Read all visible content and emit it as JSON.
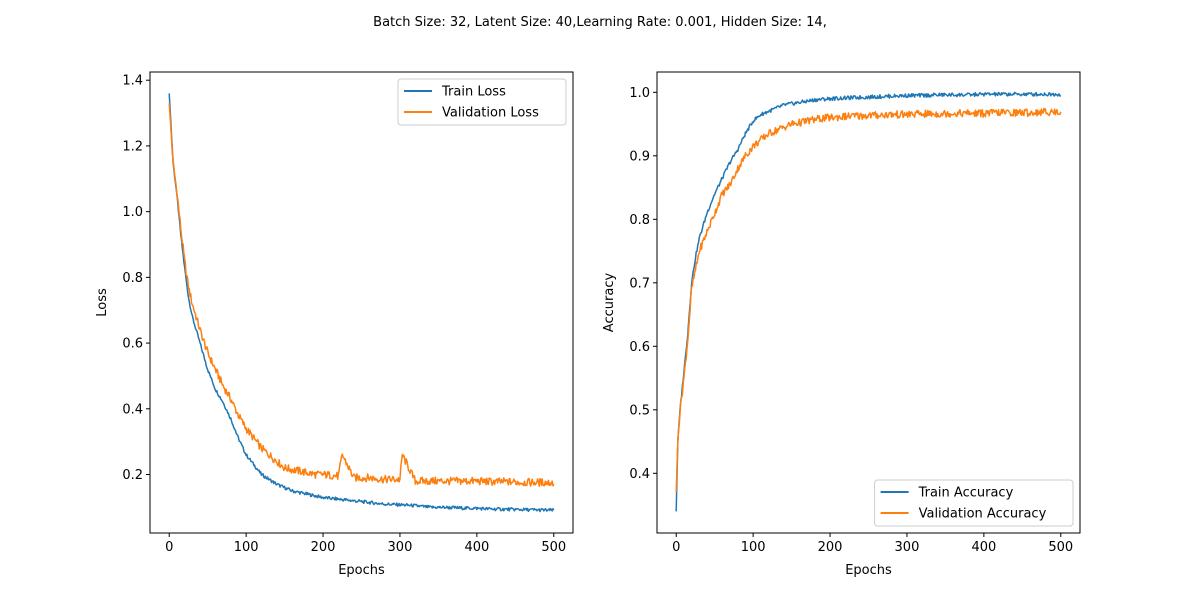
{
  "suptitle": "Batch Size: 32, Latent Size: 40,Learning Rate: 0.001, Hidden Size: 14,",
  "colors": {
    "blue": "#1f77b4",
    "orange": "#ff7f0e"
  },
  "chart_data": [
    {
      "type": "line",
      "title": "",
      "xlabel": "Epochs",
      "ylabel": "Loss",
      "xlim": [
        -25,
        525
      ],
      "ylim": [
        0.022,
        1.425
      ],
      "xticks": [
        0,
        100,
        200,
        300,
        400,
        500
      ],
      "yticks": [
        0.2,
        0.4,
        0.6,
        0.8,
        1.0,
        1.2,
        1.4
      ],
      "ytick_labels": [
        "0.2",
        "0.4",
        "0.6",
        "0.8",
        "1.0",
        "1.2",
        "1.4"
      ],
      "grid": false,
      "legend_position": "upper right",
      "series": [
        {
          "name": "Train Loss",
          "color": "#1f77b4",
          "x": [
            0,
            5,
            10,
            15,
            20,
            25,
            30,
            40,
            50,
            60,
            70,
            80,
            90,
            100,
            110,
            120,
            130,
            140,
            150,
            160,
            170,
            180,
            190,
            200,
            220,
            240,
            260,
            280,
            300,
            320,
            340,
            360,
            380,
            400,
            420,
            440,
            460,
            480,
            500
          ],
          "values": [
            1.36,
            1.15,
            1.05,
            0.93,
            0.83,
            0.74,
            0.68,
            0.6,
            0.52,
            0.46,
            0.42,
            0.37,
            0.31,
            0.26,
            0.23,
            0.2,
            0.185,
            0.17,
            0.16,
            0.15,
            0.145,
            0.14,
            0.135,
            0.13,
            0.125,
            0.12,
            0.115,
            0.11,
            0.108,
            0.105,
            0.1,
            0.1,
            0.098,
            0.097,
            0.095,
            0.094,
            0.093,
            0.092,
            0.091
          ]
        },
        {
          "name": "Validation Loss",
          "color": "#ff7f0e",
          "x": [
            0,
            5,
            10,
            15,
            20,
            25,
            30,
            40,
            50,
            60,
            70,
            80,
            90,
            100,
            110,
            120,
            130,
            140,
            150,
            160,
            170,
            180,
            190,
            200,
            220,
            225,
            240,
            260,
            280,
            300,
            303,
            320,
            340,
            360,
            380,
            400,
            420,
            440,
            460,
            480,
            500
          ],
          "values": [
            1.33,
            1.15,
            1.06,
            0.95,
            0.85,
            0.77,
            0.72,
            0.64,
            0.57,
            0.52,
            0.47,
            0.43,
            0.38,
            0.34,
            0.31,
            0.28,
            0.26,
            0.24,
            0.22,
            0.215,
            0.21,
            0.205,
            0.2,
            0.2,
            0.195,
            0.26,
            0.19,
            0.19,
            0.185,
            0.185,
            0.26,
            0.18,
            0.18,
            0.18,
            0.18,
            0.18,
            0.178,
            0.178,
            0.176,
            0.176,
            0.175
          ]
        }
      ]
    },
    {
      "type": "line",
      "title": "",
      "xlabel": "Epochs",
      "ylabel": "Accuracy",
      "xlim": [
        -25,
        525
      ],
      "ylim": [
        0.306,
        1.032
      ],
      "xticks": [
        0,
        100,
        200,
        300,
        400,
        500
      ],
      "yticks": [
        0.4,
        0.5,
        0.6,
        0.7,
        0.8,
        0.9,
        1.0
      ],
      "ytick_labels": [
        "0.4",
        "0.5",
        "0.6",
        "0.7",
        "0.8",
        "0.9",
        "1.0"
      ],
      "grid": false,
      "legend_position": "lower right",
      "series": [
        {
          "name": "Train Accuracy",
          "color": "#1f77b4",
          "x": [
            0,
            2,
            5,
            10,
            15,
            20,
            25,
            30,
            40,
            50,
            60,
            70,
            80,
            90,
            100,
            110,
            120,
            130,
            140,
            150,
            160,
            170,
            180,
            190,
            200,
            220,
            240,
            260,
            280,
            300,
            320,
            340,
            360,
            380,
            400,
            420,
            440,
            460,
            480,
            500
          ],
          "values": [
            0.34,
            0.45,
            0.5,
            0.56,
            0.62,
            0.7,
            0.74,
            0.77,
            0.81,
            0.84,
            0.865,
            0.89,
            0.91,
            0.935,
            0.955,
            0.965,
            0.97,
            0.975,
            0.98,
            0.982,
            0.984,
            0.986,
            0.988,
            0.989,
            0.99,
            0.991,
            0.992,
            0.993,
            0.994,
            0.995,
            0.995,
            0.996,
            0.996,
            0.996,
            0.997,
            0.997,
            0.997,
            0.997,
            0.997,
            0.997
          ]
        },
        {
          "name": "Validation Accuracy",
          "color": "#ff7f0e",
          "x": [
            0,
            2,
            5,
            10,
            15,
            20,
            25,
            30,
            40,
            50,
            60,
            70,
            80,
            90,
            100,
            110,
            120,
            130,
            140,
            150,
            160,
            170,
            180,
            190,
            200,
            220,
            240,
            260,
            280,
            300,
            320,
            340,
            360,
            380,
            400,
            420,
            440,
            460,
            480,
            500
          ],
          "values": [
            0.37,
            0.45,
            0.5,
            0.55,
            0.61,
            0.69,
            0.72,
            0.75,
            0.78,
            0.81,
            0.84,
            0.855,
            0.88,
            0.9,
            0.915,
            0.925,
            0.935,
            0.94,
            0.945,
            0.95,
            0.952,
            0.955,
            0.957,
            0.959,
            0.96,
            0.962,
            0.963,
            0.964,
            0.965,
            0.965,
            0.966,
            0.966,
            0.967,
            0.967,
            0.967,
            0.968,
            0.968,
            0.968,
            0.969,
            0.969
          ]
        }
      ]
    }
  ]
}
